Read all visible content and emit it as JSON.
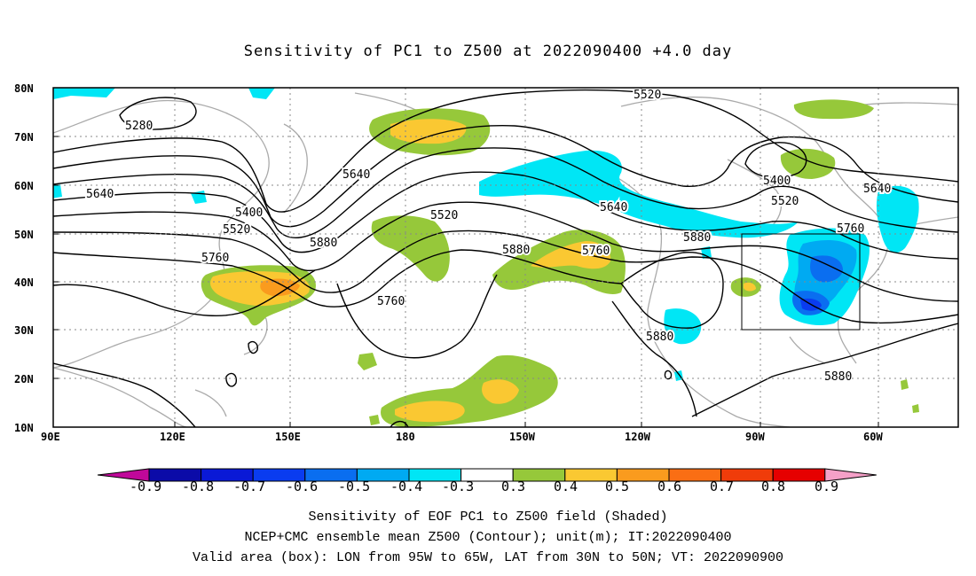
{
  "title": "Sensitivity of PC1 to Z500 at 2022090400 +4.0 day",
  "lat_labels": [
    "80N",
    "70N",
    "60N",
    "50N",
    "40N",
    "30N",
    "20N",
    "10N"
  ],
  "lon_labels": [
    "90E",
    "120E",
    "150E",
    "180",
    "150W",
    "120W",
    "90W",
    "60W"
  ],
  "contour_labels": [
    "5280",
    "5520",
    "5400",
    "5640",
    "5640",
    "5400",
    "5520",
    "5760",
    "5880",
    "5640",
    "5520",
    "5640",
    "5760",
    "5880",
    "5880",
    "5760",
    "5880",
    "5400",
    "5520",
    "5640",
    "5760",
    "5880",
    "5880"
  ],
  "colorbar": {
    "labels": [
      "-0.9",
      "-0.8",
      "-0.7",
      "-0.6",
      "-0.5",
      "-0.4",
      "-0.3",
      "0.3",
      "0.4",
      "0.5",
      "0.6",
      "0.7",
      "0.8",
      "0.9"
    ],
    "colors": [
      "#0b0ba8",
      "#0a19d6",
      "#0a3cf0",
      "#0a6ef0",
      "#00aaf2",
      "#00e6f5",
      "#ffffff",
      "#96c83a",
      "#fac832",
      "#fa9b1e",
      "#fa6e14",
      "#f03c0a",
      "#e60000"
    ],
    "low_end_color": "#c0089a",
    "high_end_color": "#f5a0c8"
  },
  "captions": [
    "Sensitivity of EOF PC1 to Z500 field (Shaded)",
    "NCEP+CMC ensemble mean Z500 (Contour); unit(m); IT:2022090400",
    "Valid area (box): LON from 95W to 65W, LAT from 30N to 50N; VT: 2022090900"
  ]
}
